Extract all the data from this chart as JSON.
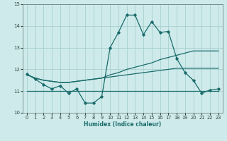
{
  "title": "",
  "xlabel": "Humidex (Indice chaleur)",
  "background_color": "#ceeaea",
  "grid_color": "#a8d0d0",
  "line_color": "#1a6b6b",
  "x_values": [
    0,
    1,
    2,
    3,
    4,
    5,
    6,
    7,
    8,
    9,
    10,
    11,
    12,
    13,
    14,
    15,
    16,
    17,
    18,
    19,
    20,
    21,
    22,
    23
  ],
  "line1_y": [
    11.8,
    11.55,
    11.3,
    11.1,
    11.25,
    10.9,
    11.1,
    10.45,
    10.45,
    10.75,
    13.0,
    13.7,
    14.5,
    14.5,
    13.6,
    14.2,
    13.7,
    13.75,
    12.5,
    11.85,
    11.5,
    10.9,
    11.05,
    11.1
  ],
  "line2_y": [
    11.75,
    11.6,
    11.5,
    11.45,
    11.4,
    11.4,
    11.45,
    11.5,
    11.55,
    11.6,
    11.75,
    11.85,
    12.0,
    12.1,
    12.2,
    12.3,
    12.45,
    12.55,
    12.65,
    12.75,
    12.85,
    12.85,
    12.85,
    12.85
  ],
  "line3_y": [
    11.75,
    11.6,
    11.5,
    11.45,
    11.4,
    11.4,
    11.45,
    11.5,
    11.55,
    11.6,
    11.65,
    11.7,
    11.75,
    11.8,
    11.85,
    11.9,
    11.95,
    12.0,
    12.05,
    12.05,
    12.05,
    12.05,
    12.05,
    12.05
  ],
  "line4_y": [
    11.0,
    11.0,
    11.0,
    11.0,
    11.0,
    11.0,
    11.0,
    11.0,
    11.0,
    11.0,
    11.0,
    11.0,
    11.0,
    11.0,
    11.0,
    11.0,
    11.0,
    11.0,
    11.0,
    11.0,
    11.0,
    11.0,
    11.0,
    11.0
  ],
  "ylim": [
    10,
    15
  ],
  "xlim": [
    -0.5,
    23.5
  ],
  "yticks": [
    10,
    11,
    12,
    13,
    14,
    15
  ],
  "xticks": [
    0,
    1,
    2,
    3,
    4,
    5,
    6,
    7,
    8,
    9,
    10,
    11,
    12,
    13,
    14,
    15,
    16,
    17,
    18,
    19,
    20,
    21,
    22,
    23
  ]
}
